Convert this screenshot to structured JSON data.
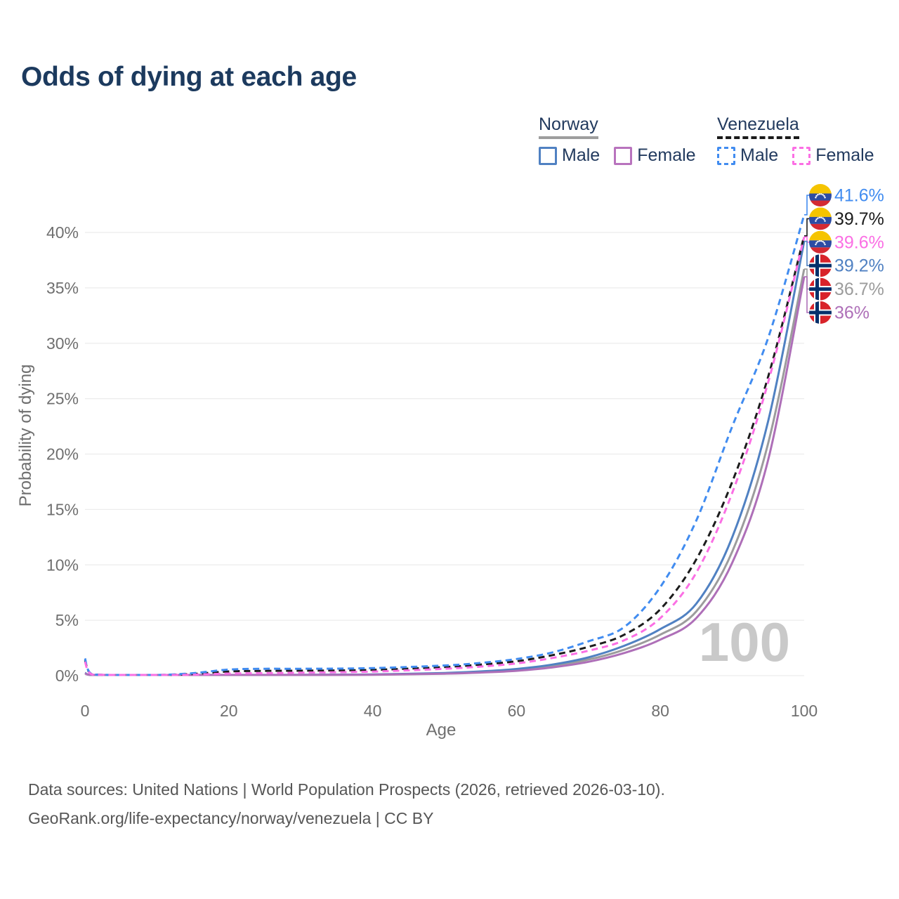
{
  "title": "Odds of dying at each age",
  "legend": {
    "groups": [
      {
        "name": "Norway",
        "line_style": "solid",
        "underline_color": "#9E9E9E",
        "items": [
          {
            "label": "Male",
            "color": "#5081C2",
            "dashed": false
          },
          {
            "label": "Female",
            "color": "#B873BD",
            "dashed": false
          }
        ]
      },
      {
        "name": "Venezuela",
        "line_style": "dashed",
        "underline_color": "#1A1A1A",
        "items": [
          {
            "label": "Male",
            "color": "#418CF0",
            "dashed": true
          },
          {
            "label": "Female",
            "color": "#FB6FE4",
            "dashed": true
          }
        ]
      }
    ]
  },
  "axes": {
    "x": {
      "label": "Age",
      "ticks": [
        0,
        20,
        40,
        60,
        80,
        100
      ],
      "range": [
        0,
        100
      ]
    },
    "y": {
      "label": "Probability of dying",
      "ticks": [
        "0%",
        "5%",
        "10%",
        "15%",
        "20%",
        "25%",
        "30%",
        "35%",
        "40%"
      ],
      "tick_values": [
        0,
        5,
        10,
        15,
        20,
        25,
        30,
        35,
        40
      ],
      "range": [
        0,
        40
      ],
      "grid": true
    }
  },
  "watermark": "100",
  "chart_data": {
    "type": "line",
    "title": "Odds of dying at each age",
    "xlabel": "Age",
    "ylabel": "Probability of dying",
    "x": [
      0,
      1,
      5,
      10,
      15,
      20,
      25,
      30,
      40,
      50,
      55,
      60,
      65,
      70,
      75,
      80,
      85,
      90,
      95,
      100
    ],
    "series": [
      {
        "name": "Norway both sexes",
        "country": "Norway",
        "sex": "both",
        "color": "#9C9C9C",
        "dashed": false,
        "values": [
          0.22,
          0.018,
          0.009,
          0.009,
          0.025,
          0.05,
          0.06,
          0.065,
          0.095,
          0.21,
          0.33,
          0.52,
          0.88,
          1.45,
          2.35,
          3.7,
          5.8,
          11.2,
          21.0,
          36.7
        ]
      },
      {
        "name": "Norway male",
        "country": "Norway",
        "sex": "male",
        "color": "#5081C2",
        "dashed": false,
        "values": [
          0.25,
          0.02,
          0.01,
          0.01,
          0.03,
          0.06,
          0.07,
          0.08,
          0.11,
          0.24,
          0.38,
          0.6,
          1.0,
          1.65,
          2.7,
          4.2,
          6.5,
          12.5,
          23.0,
          39.2
        ]
      },
      {
        "name": "Norway female",
        "country": "Norway",
        "sex": "female",
        "color": "#AE6FB8",
        "dashed": false,
        "values": [
          0.2,
          0.016,
          0.008,
          0.008,
          0.02,
          0.035,
          0.045,
          0.05,
          0.08,
          0.18,
          0.28,
          0.44,
          0.75,
          1.25,
          2.05,
          3.25,
          5.2,
          10.2,
          19.5,
          36.0
        ]
      },
      {
        "name": "Venezuela both sexes",
        "country": "Venezuela",
        "sex": "both",
        "color": "#1C1C1C",
        "dashed": true,
        "values": [
          1.4,
          0.11,
          0.045,
          0.045,
          0.15,
          0.38,
          0.43,
          0.45,
          0.52,
          0.78,
          1.0,
          1.3,
          1.85,
          2.6,
          3.7,
          6.0,
          10.5,
          17.5,
          27.0,
          39.7
        ]
      },
      {
        "name": "Venezuela male",
        "country": "Venezuela",
        "sex": "male",
        "color": "#418CF0",
        "dashed": true,
        "values": [
          1.55,
          0.12,
          0.05,
          0.05,
          0.22,
          0.55,
          0.62,
          0.62,
          0.68,
          0.92,
          1.15,
          1.5,
          2.1,
          3.1,
          4.4,
          8.0,
          14.0,
          22.5,
          30.5,
          41.6
        ]
      },
      {
        "name": "Venezuela female",
        "country": "Venezuela",
        "sex": "female",
        "color": "#FB6FE4",
        "dashed": true,
        "values": [
          1.25,
          0.1,
          0.04,
          0.04,
          0.09,
          0.19,
          0.23,
          0.27,
          0.37,
          0.62,
          0.82,
          1.1,
          1.6,
          2.25,
          3.2,
          5.2,
          9.3,
          16.5,
          26.5,
          39.6
        ]
      }
    ],
    "end_labels": [
      {
        "text": "41.6%",
        "series": "Venezuela male",
        "flag": "venezuela",
        "color": "#418CF0"
      },
      {
        "text": "39.7%",
        "series": "Venezuela both sexes",
        "flag": "venezuela",
        "color": "#1C1C1C"
      },
      {
        "text": "39.6%",
        "series": "Venezuela female",
        "flag": "venezuela",
        "color": "#FB6FE4"
      },
      {
        "text": "39.2%",
        "series": "Norway male",
        "flag": "norway",
        "color": "#5081C2"
      },
      {
        "text": "36.7%",
        "series": "Norway both sexes",
        "flag": "norway",
        "color": "#9C9C9C"
      },
      {
        "text": "36%",
        "series": "Norway female",
        "flag": "norway",
        "color": "#AE6FB8"
      }
    ],
    "flag_colors": {
      "venezuela": {
        "yellow": "#F5C400",
        "blue": "#2C4CA4",
        "red": "#D42A33",
        "stars": "#FFFFFF"
      },
      "norway": {
        "red": "#D8232A",
        "white": "#FFFFFF",
        "blue": "#03306B"
      }
    }
  },
  "style_colors": {
    "title": "#1C3A5E",
    "legend_text": "#223A5E",
    "tick_text": "#6F6F6F",
    "grid": "#ECECEC",
    "watermark": "#C9C9C9",
    "footer": "#565656"
  },
  "footer": {
    "line1": "Data sources: United Nations | World Population Prospects (2026, retrieved 2026-03-10).",
    "line2": "GeoRank.org/life-expectancy/norway/venezuela | CC BY"
  }
}
